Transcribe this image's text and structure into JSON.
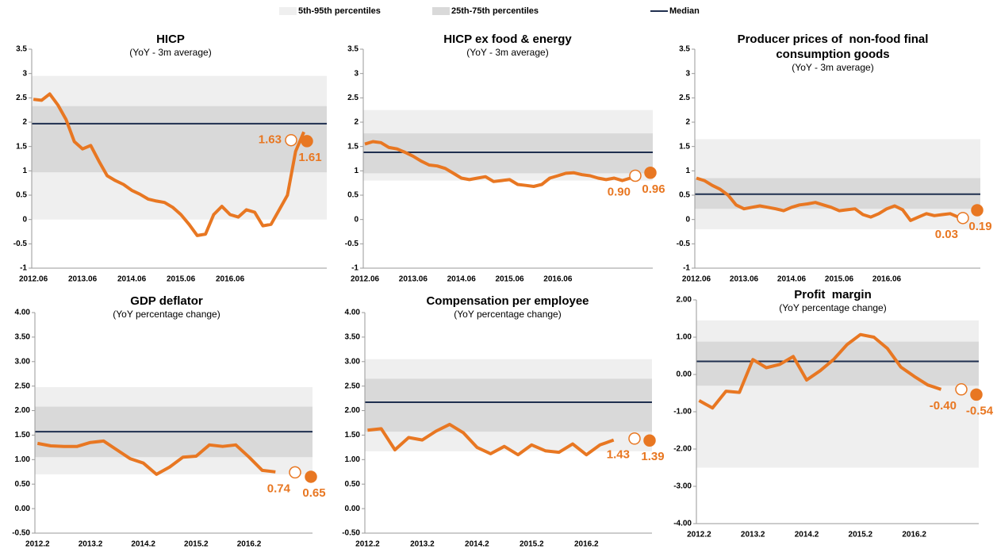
{
  "legend": [
    {
      "name": "5th-95th percentiles",
      "color": "#efefef"
    },
    {
      "name": "25th-75th percentiles",
      "color": "#d9d9d9"
    },
    {
      "name": "Median",
      "color": "#1f2f4f"
    }
  ],
  "chart_data": [
    {
      "type": "line",
      "title": "HICP",
      "subtitle": "(YoY - 3m average)",
      "ylim": [
        -1,
        3.5
      ],
      "yticks": [
        -1,
        -0.5,
        0,
        0.5,
        1,
        1.5,
        2,
        2.5,
        3,
        3.5
      ],
      "categories": [
        "2012.06",
        null,
        null,
        null,
        null,
        null,
        "2013.06",
        null,
        null,
        null,
        null,
        null,
        "2014.06",
        null,
        null,
        null,
        null,
        null,
        "2015.06",
        null,
        null,
        null,
        null,
        null,
        "2016.06",
        null,
        null,
        null,
        null,
        null,
        null,
        null,
        null,
        null
      ],
      "p5_p95": [
        0,
        2.95
      ],
      "p25_p75": [
        0.97,
        2.33
      ],
      "median": 1.97,
      "series": [
        {
          "color": "#e87722",
          "values": [
            2.47,
            2.45,
            2.58,
            2.35,
            2.05,
            1.6,
            1.45,
            1.52,
            1.2,
            0.9,
            0.8,
            0.72,
            0.6,
            0.52,
            0.42,
            0.38,
            0.35,
            0.25,
            0.1,
            -0.1,
            -0.33,
            -0.3,
            0.1,
            0.27,
            0.1,
            0.05,
            0.2,
            0.15,
            -0.13,
            -0.1,
            0.2,
            0.5,
            1.4,
            1.8
          ]
        }
      ],
      "markers": {
        "values": [
          1.63,
          1.61
        ]
      }
    },
    {
      "type": "line",
      "title": "HICP ex food & energy",
      "subtitle": "(YoY - 3m average)",
      "ylim": [
        -1,
        3.5
      ],
      "yticks": [
        -1,
        -0.5,
        0,
        0.5,
        1,
        1.5,
        2,
        2.5,
        3,
        3.5
      ],
      "categories": [
        "2012.06",
        null,
        null,
        null,
        null,
        null,
        "2013.06",
        null,
        null,
        null,
        null,
        null,
        "2014.06",
        null,
        null,
        null,
        null,
        null,
        "2015.06",
        null,
        null,
        null,
        null,
        null,
        "2016.06",
        null,
        null,
        null,
        null,
        null,
        null,
        null,
        null,
        null
      ],
      "p5_p95": [
        0.8,
        2.25
      ],
      "p25_p75": [
        0.95,
        1.77
      ],
      "median": 1.38,
      "series": [
        {
          "color": "#e87722",
          "values": [
            1.55,
            1.6,
            1.58,
            1.48,
            1.45,
            1.38,
            1.3,
            1.2,
            1.12,
            1.1,
            1.05,
            0.95,
            0.85,
            0.82,
            0.85,
            0.88,
            0.78,
            0.8,
            0.82,
            0.72,
            0.7,
            0.68,
            0.72,
            0.85,
            0.9,
            0.95,
            0.96,
            0.92,
            0.9,
            0.85,
            0.82,
            0.85,
            0.8,
            0.85
          ]
        }
      ],
      "markers": {
        "values": [
          0.9,
          0.96
        ],
        "value_labels": [
          "0.90",
          "0.96"
        ]
      }
    },
    {
      "type": "line",
      "title": "Producer prices of  non-food final consumption goods",
      "subtitle": "(YoY - 3m average)",
      "ylim": [
        -1,
        3.5
      ],
      "yticks": [
        -1,
        -0.5,
        0,
        0.5,
        1,
        1.5,
        2,
        2.5,
        3,
        3.5
      ],
      "categories": [
        "2012.06",
        null,
        null,
        null,
        null,
        null,
        "2013.06",
        null,
        null,
        null,
        null,
        null,
        "2014.06",
        null,
        null,
        null,
        null,
        null,
        "2015.06",
        null,
        null,
        null,
        null,
        null,
        "2016.06",
        null,
        null,
        null,
        null,
        null,
        null,
        null,
        null,
        null
      ],
      "p5_p95": [
        -0.2,
        1.65
      ],
      "p25_p75": [
        0.22,
        0.85
      ],
      "median": 0.52,
      "series": [
        {
          "color": "#e87722",
          "values": [
            0.85,
            0.8,
            0.7,
            0.62,
            0.5,
            0.3,
            0.22,
            0.25,
            0.28,
            0.25,
            0.22,
            0.18,
            0.25,
            0.3,
            0.32,
            0.35,
            0.3,
            0.25,
            0.18,
            0.2,
            0.22,
            0.1,
            0.05,
            0.12,
            0.22,
            0.28,
            0.2,
            -0.02,
            0.05,
            0.12,
            0.08,
            0.1,
            0.12,
            0.05
          ]
        }
      ],
      "markers": {
        "values": [
          0.03,
          0.19
        ]
      }
    },
    {
      "type": "line",
      "title": "GDP deflator",
      "subtitle": "(YoY percentage change)",
      "ylim": [
        -0.5,
        4
      ],
      "yticks": [
        {
          "value": -0.5,
          "label": "-0.50"
        },
        {
          "value": 0,
          "label": "0.00"
        },
        {
          "value": 0.5,
          "label": "0.50"
        },
        {
          "value": 1,
          "label": "1.00"
        },
        {
          "value": 1.5,
          "label": "1.50"
        },
        {
          "value": 2,
          "label": "2.00"
        },
        {
          "value": 2.5,
          "label": "2.50"
        },
        {
          "value": 3,
          "label": "3.00"
        },
        {
          "value": 3.5,
          "label": "3.50"
        },
        {
          "value": 4,
          "label": "4.00"
        }
      ],
      "categories": [
        "2012.2",
        null,
        null,
        null,
        "2013.2",
        null,
        null,
        null,
        "2014.2",
        null,
        null,
        null,
        "2015.2",
        null,
        null,
        null,
        "2016.2",
        null,
        null
      ],
      "p5_p95": [
        0.7,
        2.48
      ],
      "p25_p75": [
        1.05,
        2.08
      ],
      "median": 1.57,
      "series": [
        {
          "color": "#e87722",
          "values": [
            1.33,
            1.28,
            1.27,
            1.27,
            1.35,
            1.38,
            1.2,
            1.02,
            0.93,
            0.7,
            0.85,
            1.05,
            1.07,
            1.3,
            1.27,
            1.3,
            1.05,
            0.78,
            0.75
          ]
        }
      ],
      "markers": {
        "values": [
          0.74,
          0.65
        ]
      }
    },
    {
      "type": "line",
      "title": "Compensation per employee",
      "subtitle": "(YoY percentage change)",
      "ylim": [
        -0.5,
        4
      ],
      "yticks": [
        {
          "value": -0.5,
          "label": "-0.50"
        },
        {
          "value": 0,
          "label": "0.00"
        },
        {
          "value": 0.5,
          "label": "0.50"
        },
        {
          "value": 1,
          "label": "1.00"
        },
        {
          "value": 1.5,
          "label": "1.50"
        },
        {
          "value": 2,
          "label": "2.00"
        },
        {
          "value": 2.5,
          "label": "2.50"
        },
        {
          "value": 3,
          "label": "3.00"
        },
        {
          "value": 3.5,
          "label": "3.50"
        },
        {
          "value": 4,
          "label": "4.00"
        }
      ],
      "categories": [
        "2012.2",
        null,
        null,
        null,
        "2013.2",
        null,
        null,
        null,
        "2014.2",
        null,
        null,
        null,
        "2015.2",
        null,
        null,
        null,
        "2016.2",
        null,
        null
      ],
      "p5_p95": [
        1.17,
        3.05
      ],
      "p25_p75": [
        1.57,
        2.65
      ],
      "median": 2.17,
      "series": [
        {
          "color": "#e87722",
          "values": [
            1.6,
            1.63,
            1.2,
            1.45,
            1.4,
            1.58,
            1.72,
            1.55,
            1.25,
            1.12,
            1.27,
            1.1,
            1.3,
            1.18,
            1.15,
            1.32,
            1.1,
            1.3,
            1.4
          ]
        }
      ],
      "markers": {
        "values": [
          1.43,
          1.39
        ]
      }
    },
    {
      "type": "line",
      "title": "Profit  margin",
      "subtitle": "(YoY percentage change)",
      "ylim": [
        -4,
        2
      ],
      "yticks": [
        {
          "value": -4,
          "label": "-4.00"
        },
        {
          "value": -3,
          "label": "-3.00"
        },
        {
          "value": -2,
          "label": "-2.00"
        },
        {
          "value": -1,
          "label": "-1.00"
        },
        {
          "value": 0,
          "label": "0.00"
        },
        {
          "value": 1,
          "label": "1.00"
        },
        {
          "value": 2,
          "label": "2.00"
        }
      ],
      "categories": [
        "2012.2",
        null,
        null,
        null,
        "2013.2",
        null,
        null,
        null,
        "2014.2",
        null,
        null,
        null,
        "2015.2",
        null,
        null,
        null,
        "2016.2",
        null,
        null
      ],
      "p5_p95": [
        -2.5,
        1.45
      ],
      "p25_p75": [
        -0.3,
        0.88
      ],
      "median": 0.35,
      "series": [
        {
          "color": "#e87722",
          "values": [
            -0.7,
            -0.9,
            -0.45,
            -0.48,
            0.4,
            0.18,
            0.27,
            0.48,
            -0.15,
            0.1,
            0.4,
            0.8,
            1.07,
            1.0,
            0.7,
            0.2,
            -0.05,
            -0.28,
            -0.4
          ]
        }
      ],
      "markers": {
        "values": [
          -0.4,
          -0.54
        ],
        "value_labels": [
          "-0.40",
          "-0.54"
        ]
      }
    }
  ]
}
